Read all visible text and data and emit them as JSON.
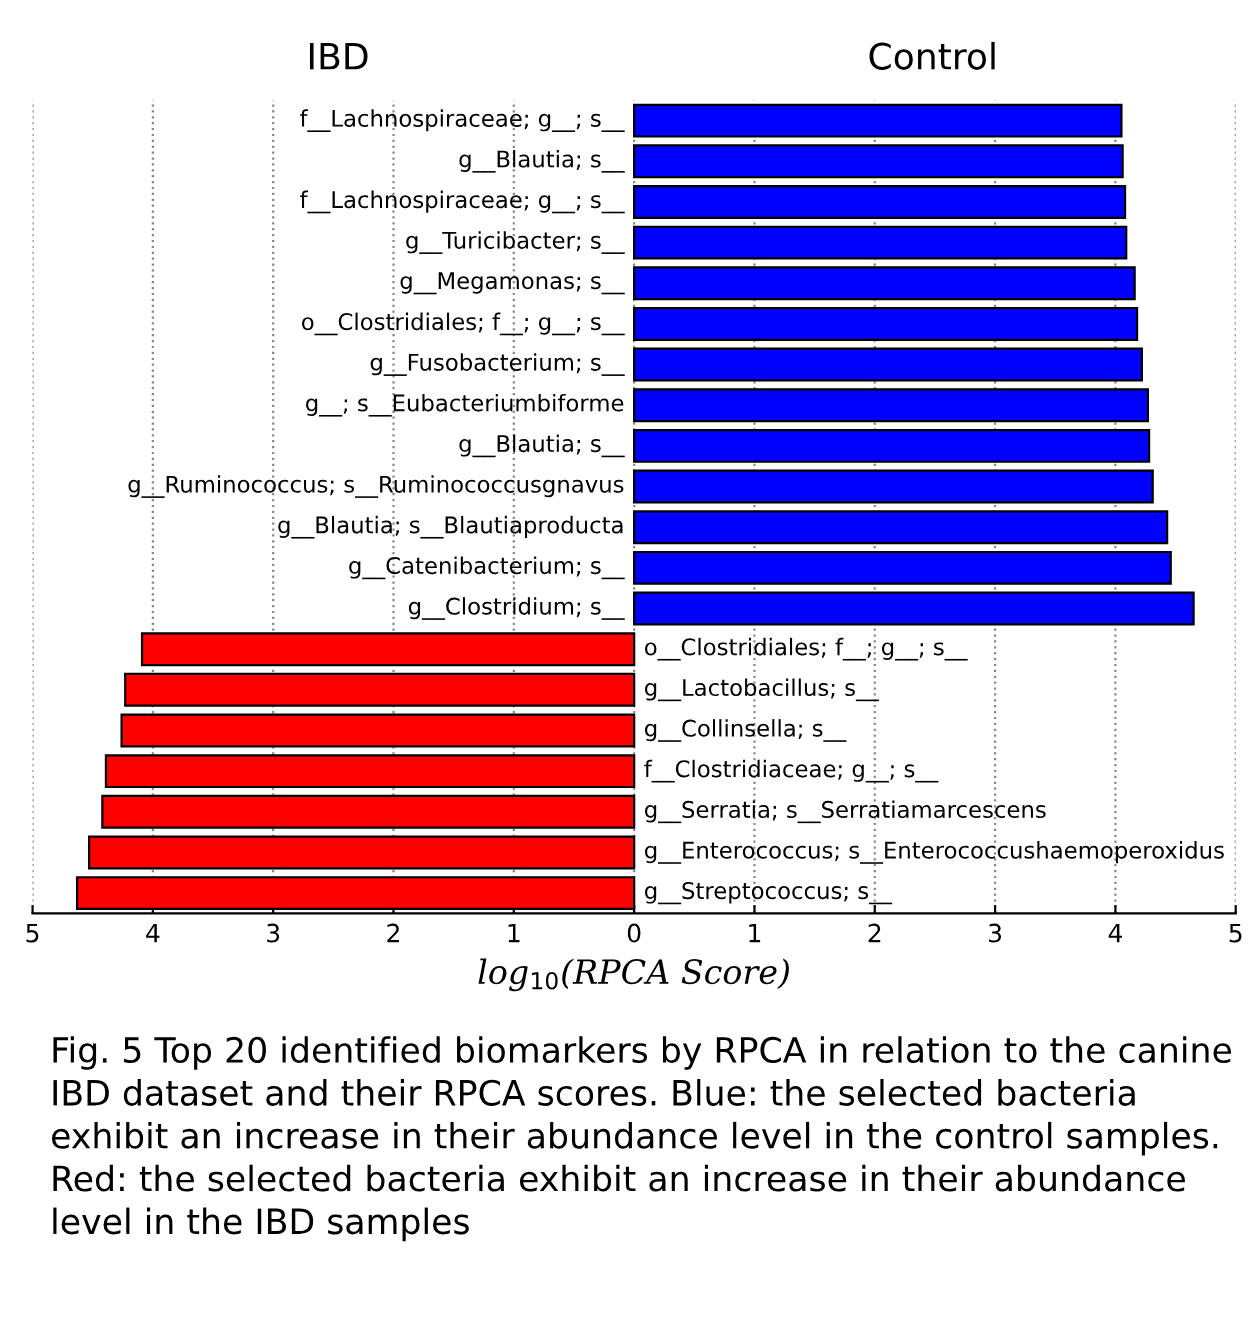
{
  "chart_data": {
    "type": "bar",
    "orientation": "horizontal",
    "xlabel": "log$_{10}$(RPCA Score)",
    "categories": [
      "f__Lachnospiraceae; g__; s__",
      "g__Blautia; s__",
      "f__Lachnospiraceae; g__; s__",
      "g__Turicibacter; s__",
      "g__Megamonas; s__",
      "o__Clostridiales; f__; g__; s__",
      "g__Fusobacterium; s__",
      "g__; s__Eubacteriumbiforme",
      "g__Blautia; s__",
      "g__Ruminococcus; s__Ruminococcusgnavus",
      "g__Blautia; s__Blautiaproducta",
      "g__Catenibacterium; s__",
      "g__Clostridium; s__",
      "o__Clostridiales; f__; g__; s__",
      "g__Lactobacillus; s__",
      "g__Collinsella; s__",
      "f__Clostridiaceae; g__; s__",
      "g__Serratia; s__Serratiamarcescens",
      "g__Enterococcus; s__Enterococcushaemoperoxidus",
      "g__Streptococcus; s__"
    ],
    "values": [
      4.05,
      4.06,
      4.08,
      4.09,
      4.16,
      4.18,
      4.22,
      4.27,
      4.28,
      4.31,
      4.43,
      4.46,
      4.65,
      -4.09,
      -4.23,
      -4.26,
      -4.39,
      -4.42,
      -4.53,
      -4.63
    ],
    "colors": [
      "#0000ff",
      "#0000ff",
      "#0000ff",
      "#0000ff",
      "#0000ff",
      "#0000ff",
      "#0000ff",
      "#0000ff",
      "#0000ff",
      "#0000ff",
      "#0000ff",
      "#0000ff",
      "#0000ff",
      "#ff0000",
      "#ff0000",
      "#ff0000",
      "#ff0000",
      "#ff0000",
      "#ff0000",
      "#ff0000"
    ],
    "xlim": [
      -5,
      5
    ],
    "xticks": [
      {
        "value": -5,
        "label": "5"
      },
      {
        "value": -4,
        "label": "4"
      },
      {
        "value": -3,
        "label": "3"
      },
      {
        "value": -2,
        "label": "2"
      },
      {
        "value": -1,
        "label": "1"
      },
      0,
      1,
      2,
      3,
      4,
      5
    ],
    "grid": "x",
    "annotations": [
      "IBD",
      "Control",
      "Fig. 5 Top 20 identified biomarkers by RPCA in relation to the canine IBD dataset and their RPCA scores. Blue: the selected bacteria exhibit an increase in their abundance level in the control samples. Red: the selected bacteria exhibit an increase in their abundance level in the IBD samples"
    ]
  }
}
